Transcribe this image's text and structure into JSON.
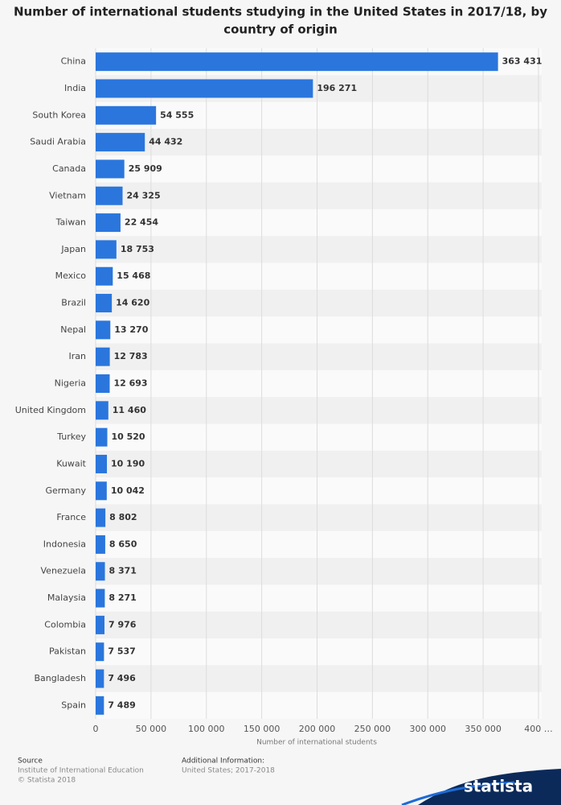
{
  "chart_data": {
    "type": "barh",
    "title": [
      "Number of international students studying in the United States in 2017/18, by",
      "country of origin"
    ],
    "categories": [
      "China",
      "India",
      "South Korea",
      "Saudi Arabia",
      "Canada",
      "Vietnam",
      "Taiwan",
      "Japan",
      "Mexico",
      "Brazil",
      "Nepal",
      "Iran",
      "Nigeria",
      "United Kingdom",
      "Turkey",
      "Kuwait",
      "Germany",
      "France",
      "Indonesia",
      "Venezuela",
      "Malaysia",
      "Colombia",
      "Pakistan",
      "Bangladesh",
      "Spain"
    ],
    "values": [
      363431,
      196271,
      54555,
      44432,
      25909,
      24325,
      22454,
      18753,
      15468,
      14620,
      13270,
      12783,
      12693,
      11460,
      10520,
      10190,
      10042,
      8802,
      8650,
      8371,
      8271,
      7976,
      7537,
      7496,
      7489
    ],
    "value_labels": [
      "363 431",
      "196 271",
      "54 555",
      "44 432",
      "25 909",
      "24 325",
      "22 454",
      "18 753",
      "15 468",
      "14 620",
      "13 270",
      "12 783",
      "12 693",
      "11 460",
      "10 520",
      "10 190",
      "10 042",
      "8 802",
      "8 650",
      "8 371",
      "8 271",
      "7 976",
      "7 537",
      "7 496",
      "7 489"
    ],
    "color": "#2a76dd",
    "xlim": [
      0,
      400000
    ],
    "xticks": [
      0,
      {
        "value": 50000,
        "label": "50 000"
      },
      {
        "value": 100000,
        "label": "100 000"
      },
      {
        "value": 150000,
        "label": "150 000"
      },
      {
        "value": 200000,
        "label": "200 000"
      },
      {
        "value": 250000,
        "label": "250 000"
      },
      {
        "value": 300000,
        "label": "300 000"
      },
      {
        "value": 350000,
        "label": "350 000"
      },
      {
        "value": 400000,
        "label": "400 …"
      }
    ],
    "grid": true,
    "x_label": "Number of international students",
    "source_label": "Source",
    "source": "Institute of International Education",
    "copyright": "© Statista 2018",
    "info_label": "Additional Information:",
    "info": "United States; 2017-2018",
    "brand": "statista"
  }
}
